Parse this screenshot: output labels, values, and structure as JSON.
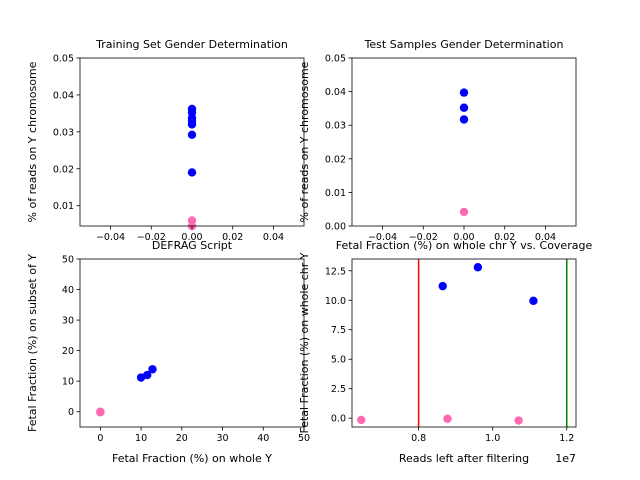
{
  "colors": {
    "male": "#0000ff",
    "female": "#ff69b4",
    "vline_red": "#ff0000",
    "vline_green": "#008000"
  },
  "chart_data": [
    {
      "type": "scatter",
      "title": "Training Set Gender Determination",
      "xlabel": "",
      "ylabel": "% of reads on Y chromosome",
      "xlim": [
        -0.055,
        0.055
      ],
      "ylim": [
        0.0045,
        0.05
      ],
      "xticks": [
        "−0.04",
        "−0.02",
        "0.00",
        "0.02",
        "0.04"
      ],
      "xtick_values": [
        -0.04,
        -0.02,
        0.0,
        0.02,
        0.04
      ],
      "yticks": [
        "0.01",
        "0.02",
        "0.03",
        "0.04",
        "0.05"
      ],
      "ytick_values": [
        0.01,
        0.02,
        0.03,
        0.04,
        0.05
      ],
      "series": [
        {
          "color": "#0000ff",
          "x": [
            0,
            0,
            0,
            0,
            0,
            0,
            0
          ],
          "y": [
            0.0362,
            0.0352,
            0.0338,
            0.033,
            0.032,
            0.0292,
            0.019
          ]
        },
        {
          "color": "#ff69b4",
          "x": [
            0,
            0
          ],
          "y": [
            0.006,
            0.0045
          ]
        }
      ]
    },
    {
      "type": "scatter",
      "title": "Test Samples Gender Determination",
      "xlabel": "",
      "ylabel": "% of reads on Y chromosome",
      "xlim": [
        -0.055,
        0.055
      ],
      "ylim": [
        0.0,
        0.05
      ],
      "xticks": [
        "−0.04",
        "−0.02",
        "0.00",
        "0.02",
        "0.04"
      ],
      "xtick_values": [
        -0.04,
        -0.02,
        0.0,
        0.02,
        0.04
      ],
      "yticks": [
        "0.00",
        "0.01",
        "0.02",
        "0.03",
        "0.04",
        "0.05"
      ],
      "ytick_values": [
        0.0,
        0.01,
        0.02,
        0.03,
        0.04,
        0.05
      ],
      "series": [
        {
          "color": "#0000ff",
          "x": [
            0,
            0,
            0
          ],
          "y": [
            0.0397,
            0.0352,
            0.0317
          ]
        },
        {
          "color": "#ff69b4",
          "x": [
            0
          ],
          "y": [
            0.0042
          ]
        }
      ]
    },
    {
      "type": "scatter",
      "title": "DEFRAG Script",
      "xlabel": "Fetal Fraction (%) on whole Y",
      "ylabel": "Fetal Fraction (%) on subset of Y",
      "xlim": [
        -5,
        50
      ],
      "ylim": [
        -5,
        50
      ],
      "xticks": [
        "0",
        "10",
        "20",
        "30",
        "40",
        "50"
      ],
      "xtick_values": [
        0,
        10,
        20,
        30,
        40,
        50
      ],
      "yticks": [
        "0",
        "10",
        "20",
        "30",
        "40",
        "50"
      ],
      "ytick_values": [
        0,
        10,
        20,
        30,
        40,
        50
      ],
      "series": [
        {
          "color": "#0000ff",
          "x": [
            10.0,
            11.5,
            12.8
          ],
          "y": [
            11.2,
            12.0,
            13.9
          ]
        },
        {
          "color": "#ff69b4",
          "x": [
            0,
            0
          ],
          "y": [
            0,
            -0.2
          ]
        }
      ]
    },
    {
      "type": "scatter",
      "title": "Fetal Fraction (%) on whole chr Y vs. Coverage",
      "xlabel": "Reads left after filtering",
      "ylabel": "Fetal Fraction (%) on whole chr Y",
      "offset_text": "1e7",
      "xlim": [
        6200000,
        12250000
      ],
      "ylim": [
        -0.75,
        13.5
      ],
      "xticks": [
        "0.8",
        "1.0",
        "1.2"
      ],
      "xtick_values": [
        8000000,
        10000000,
        12000000
      ],
      "yticks": [
        "0.0",
        "2.5",
        "5.0",
        "7.5",
        "10.0",
        "12.5"
      ],
      "ytick_values": [
        0,
        2.5,
        5,
        7.5,
        10,
        12.5
      ],
      "vlines": [
        {
          "x": 8000000,
          "color": "#ff0000"
        },
        {
          "x": 12000000,
          "color": "#008000"
        }
      ],
      "series": [
        {
          "color": "#0000ff",
          "x": [
            8650000,
            9600000,
            11100000
          ],
          "y": [
            11.2,
            12.8,
            9.95
          ]
        },
        {
          "color": "#ff69b4",
          "x": [
            6450000,
            8780000,
            10700000
          ],
          "y": [
            -0.15,
            -0.05,
            -0.2
          ]
        }
      ]
    }
  ]
}
